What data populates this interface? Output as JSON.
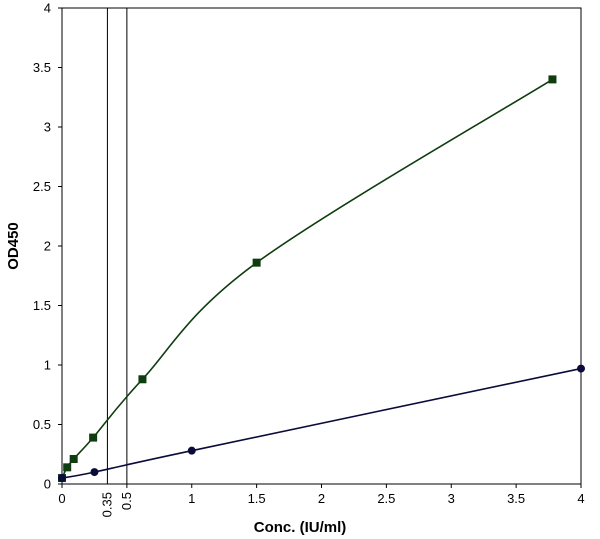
{
  "chart_data": {
    "type": "line",
    "title": "",
    "xlabel": "Conc. (IU/ml)",
    "ylabel": "OD450",
    "xlim": [
      0,
      4
    ],
    "ylim": [
      0,
      4
    ],
    "x_ticks": [
      0,
      0.5,
      1,
      1.5,
      2,
      2.5,
      3,
      3.5,
      4
    ],
    "x_tick_labels": [
      "0",
      "0.5",
      "1",
      "1.5",
      "2",
      "2.5",
      "3",
      "3.5",
      "4"
    ],
    "y_ticks": [
      0,
      0.5,
      1,
      1.5,
      2,
      2.5,
      3,
      3.5,
      4
    ],
    "y_tick_labels": [
      "0",
      "0.5",
      "1",
      "1.5",
      "2",
      "2.5",
      "3",
      "3.5",
      "4"
    ],
    "extra_x_labels": [
      {
        "value": 0.35,
        "label": "0.35"
      },
      {
        "value": 0.5,
        "label": "0.5"
      }
    ],
    "reference_lines_x": [
      0.35,
      0.5
    ],
    "grid": false,
    "legend": "none",
    "series": [
      {
        "marker": "square",
        "color": "#0f3d0f",
        "x": [
          0.0,
          0.04,
          0.09,
          0.24,
          0.62,
          1.5,
          3.78
        ],
        "y": [
          0.05,
          0.14,
          0.21,
          0.39,
          0.88,
          1.86,
          3.4
        ]
      },
      {
        "marker": "circle",
        "color": "#0b0b3a",
        "x": [
          0.0,
          0.25,
          1.0,
          4.0
        ],
        "y": [
          0.05,
          0.1,
          0.28,
          0.97
        ]
      }
    ]
  }
}
